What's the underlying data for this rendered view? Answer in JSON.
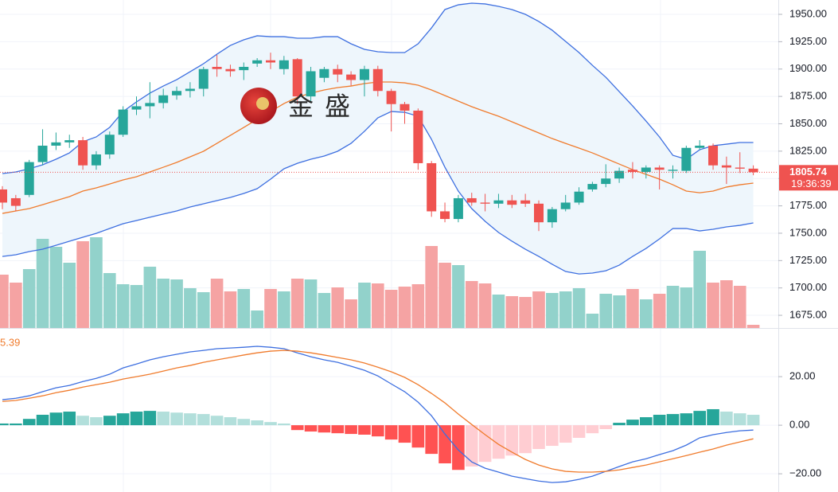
{
  "chart_data": [
    {
      "type": "candlestick",
      "open": [
        1790,
        1782,
        1785,
        1815,
        1830,
        1833,
        1835,
        1812,
        1822,
        1840,
        1863,
        1866,
        1869,
        1876,
        1880,
        1882,
        1902,
        1900,
        1899,
        1905,
        1908,
        1900,
        1909,
        1875,
        1892,
        1900,
        1895,
        1890,
        1900,
        1880,
        1868,
        1862,
        1814,
        1770,
        1763,
        1782,
        1778,
        1777,
        1780,
        1780,
        1777,
        1760,
        1772,
        1778,
        1790,
        1795,
        1800,
        1808,
        1806,
        1810,
        1807,
        1807,
        1828,
        1830,
        1812,
        1810,
        1809
      ],
      "high": [
        1793,
        1785,
        1817,
        1845,
        1842,
        1840,
        1838,
        1825,
        1843,
        1866,
        1875,
        1888,
        1882,
        1884,
        1888,
        1902,
        1913,
        1904,
        1906,
        1910,
        1915,
        1912,
        1910,
        1902,
        1902,
        1904,
        1898,
        1903,
        1903,
        1882,
        1870,
        1864,
        1816,
        1778,
        1785,
        1787,
        1786,
        1786,
        1785,
        1786,
        1780,
        1774,
        1785,
        1792,
        1797,
        1813,
        1810,
        1815,
        1812,
        1812,
        1812,
        1830,
        1835,
        1832,
        1820,
        1824,
        1812
      ],
      "low": [
        1772,
        1770,
        1783,
        1812,
        1826,
        1828,
        1808,
        1808,
        1818,
        1838,
        1858,
        1855,
        1864,
        1872,
        1874,
        1875,
        1893,
        1893,
        1890,
        1902,
        1900,
        1895,
        1868,
        1870,
        1888,
        1888,
        1885,
        1875,
        1875,
        1843,
        1850,
        1808,
        1765,
        1760,
        1760,
        1775,
        1770,
        1773,
        1773,
        1774,
        1752,
        1755,
        1770,
        1776,
        1788,
        1792,
        1796,
        1800,
        1800,
        1790,
        1800,
        1805,
        1826,
        1808,
        1795,
        1805,
        1803
      ],
      "close": [
        1778,
        1775,
        1815,
        1830,
        1833,
        1835,
        1812,
        1822,
        1840,
        1863,
        1866,
        1869,
        1876,
        1880,
        1882,
        1900,
        1900,
        1898,
        1902,
        1908,
        1906,
        1908,
        1875,
        1898,
        1900,
        1895,
        1890,
        1900,
        1880,
        1868,
        1862,
        1814,
        1770,
        1763,
        1782,
        1778,
        1777,
        1780,
        1776,
        1777,
        1760,
        1772,
        1778,
        1788,
        1795,
        1800,
        1807,
        1806,
        1810,
        1808,
        1808,
        1828,
        1830,
        1812,
        1810,
        1809,
        1805.74
      ],
      "volume": [
        67,
        57,
        74,
        112,
        102,
        82,
        109,
        114,
        69,
        55,
        54,
        77,
        62,
        61,
        50,
        45,
        62,
        46,
        49,
        22,
        49,
        46,
        62,
        61,
        44,
        51,
        36,
        57,
        56,
        48,
        52,
        55,
        103,
        82,
        79,
        59,
        56,
        42,
        40,
        39,
        46,
        44,
        46,
        50,
        18,
        43,
        41,
        49,
        36,
        43,
        53,
        51,
        97,
        57,
        60,
        53,
        4
      ],
      "up_color": "#26a69a",
      "down_color": "#ef5350",
      "volume_up_color": "#92d2cb",
      "volume_down_color": "#f5a3a3",
      "upper_band": [
        1804.5,
        1806,
        1808.9,
        1812.5,
        1817.6,
        1823.4,
        1833.6,
        1838,
        1846.7,
        1861.2,
        1870,
        1878,
        1884.5,
        1890.3,
        1897.6,
        1904.9,
        1913.6,
        1921.6,
        1926.7,
        1930.4,
        1929.6,
        1929.6,
        1928.2,
        1928.2,
        1929.6,
        1929.6,
        1923.1,
        1918,
        1915.8,
        1915.1,
        1915.1,
        1923.1,
        1937.6,
        1954.4,
        1958.7,
        1960.2,
        1959.5,
        1957.3,
        1954.4,
        1950,
        1943.5,
        1935.5,
        1925.3,
        1915.1,
        1903.4,
        1892.5,
        1879.4,
        1866.3,
        1852.5,
        1838,
        1821.2,
        1817.6,
        1826.3,
        1830,
        1831.4,
        1832.9,
        1832.9
      ],
      "middle_band": [
        1768.1,
        1770.3,
        1772.5,
        1776.1,
        1779.8,
        1783.4,
        1788.5,
        1791.4,
        1795,
        1798.7,
        1801.6,
        1806,
        1810.3,
        1814.7,
        1819.8,
        1824.9,
        1832.1,
        1839.4,
        1846.7,
        1854,
        1861.2,
        1868.5,
        1874.3,
        1878,
        1880.9,
        1883.1,
        1884.5,
        1886.7,
        1888.2,
        1888.2,
        1887.4,
        1885.3,
        1880.9,
        1875.8,
        1870.7,
        1865.6,
        1861.2,
        1856.9,
        1851.8,
        1846.7,
        1841.6,
        1836.5,
        1832.1,
        1827.8,
        1823.4,
        1818.3,
        1813.2,
        1808.1,
        1803.8,
        1799.4,
        1794.3,
        1788.5,
        1787,
        1788.5,
        1792.2,
        1794.3,
        1795.8
      ],
      "lower_band": [
        1728.8,
        1730.3,
        1733.2,
        1735.4,
        1739,
        1742.7,
        1746.3,
        1749.9,
        1754.3,
        1758.7,
        1761.6,
        1764.6,
        1767.5,
        1770.3,
        1774,
        1776.9,
        1779.8,
        1782.7,
        1786.3,
        1790.7,
        1799.4,
        1808.9,
        1813.9,
        1817.6,
        1820.5,
        1824.9,
        1832.1,
        1843.1,
        1855.4,
        1861.2,
        1860.5,
        1856.9,
        1835.8,
        1810.3,
        1788.5,
        1772.5,
        1760.9,
        1750.7,
        1742.7,
        1735.4,
        1728.8,
        1721.6,
        1715,
        1712.8,
        1713.6,
        1715.7,
        1720.8,
        1728.8,
        1736.1,
        1744.8,
        1754.3,
        1754.3,
        1752.1,
        1753.6,
        1755.8,
        1757.2,
        1759.4
      ],
      "band_color": "#3d6fe0",
      "middle_color": "#f07b2c",
      "band_fill": "#eef6fc",
      "ylim": [
        1663.4,
        1963.1
      ],
      "yticks": [
        {
          "value": 1950,
          "label": "1950.00"
        },
        {
          "value": 1925,
          "label": "1925.00"
        },
        {
          "value": 1900,
          "label": "1900.00"
        },
        {
          "value": 1875,
          "label": "1875.00"
        },
        {
          "value": 1850,
          "label": "1850.00"
        },
        {
          "value": 1825,
          "label": "1825.00"
        },
        {
          "value": 1800,
          "label": "1800.00"
        },
        {
          "value": 1775,
          "label": "1775.00"
        },
        {
          "value": 1750,
          "label": "1750.00"
        },
        {
          "value": 1725,
          "label": "1725.00"
        },
        {
          "value": 1700,
          "label": "1700.00"
        },
        {
          "value": 1675,
          "label": "1675.00"
        }
      ],
      "last_price": {
        "value": 1805.74,
        "label": "1805.74"
      },
      "countdown": "19:36:39"
    },
    {
      "type": "macd",
      "macd": [
        10.5,
        11.1,
        12.1,
        13.8,
        15.4,
        16.4,
        18,
        19.3,
        21,
        23.6,
        25.2,
        26.9,
        28.2,
        29.2,
        30.2,
        30.8,
        31.5,
        31.8,
        32.1,
        32.5,
        32.1,
        31.5,
        29.8,
        28.2,
        26.9,
        25.9,
        24.3,
        22.6,
        20.3,
        17,
        13.8,
        9.5,
        3.9,
        -3.6,
        -10.2,
        -15.1,
        -17.7,
        -19.3,
        -21,
        -22,
        -23,
        -23.6,
        -23.3,
        -22.3,
        -21,
        -19,
        -17,
        -15.1,
        -13.8,
        -12.1,
        -10.5,
        -8.2,
        -5.2,
        -3.9,
        -3,
        -2.3,
        -2
      ],
      "signal": [
        9.8,
        10.2,
        11.1,
        12.1,
        13.4,
        14.4,
        15.7,
        16.7,
        17.7,
        19,
        20,
        21,
        22.3,
        23.6,
        24.6,
        25.9,
        26.9,
        27.9,
        28.9,
        29.8,
        30.5,
        30.8,
        30.5,
        29.8,
        28.9,
        27.9,
        26.9,
        25.6,
        23.9,
        22,
        19.7,
        16.7,
        13.1,
        9.2,
        4.6,
        0.3,
        -3.9,
        -7.9,
        -11.1,
        -14.1,
        -16.4,
        -18,
        -19,
        -19.3,
        -19.3,
        -19,
        -18.4,
        -17.4,
        -16.4,
        -15.1,
        -13.8,
        -12.5,
        -11.1,
        -9.8,
        -8.2,
        -6.9,
        -5.6
      ],
      "histogram": [
        0.7,
        0.7,
        2.6,
        4.3,
        5.2,
        5.6,
        3.9,
        3.3,
        3.9,
        4.9,
        5.6,
        5.9,
        5.6,
        5.2,
        4.9,
        4.6,
        3.9,
        3.3,
        2.6,
        2,
        1.3,
        0.7,
        -2,
        -2.6,
        -3,
        -3.3,
        -3.6,
        -3.9,
        -4.6,
        -5.9,
        -7.2,
        -9.2,
        -11.8,
        -15.7,
        -18.4,
        -17,
        -15.1,
        -13.8,
        -12.5,
        -11.5,
        -9.8,
        -8.5,
        -7.2,
        -5.2,
        -3.3,
        -1.6,
        1,
        2.3,
        3.3,
        4.3,
        4.6,
        4.9,
        5.9,
        6.6,
        5.6,
        4.9,
        4.3
      ],
      "macd_color": "#3d6fe0",
      "signal_color": "#f07b2c",
      "histogram_colors": [
        "#26a69a",
        "#b2dfdb",
        "#ff5252",
        "#ffcdd2"
      ],
      "value_text": "5.39",
      "ylim": [
        -27.5,
        39.7
      ],
      "yticks": [
        {
          "value": 20,
          "label": "20.00"
        },
        {
          "value": 0,
          "label": "0.00"
        },
        {
          "value": -20,
          "label": "−20.00"
        }
      ]
    }
  ],
  "watermark": [
    "金",
    "盛"
  ]
}
